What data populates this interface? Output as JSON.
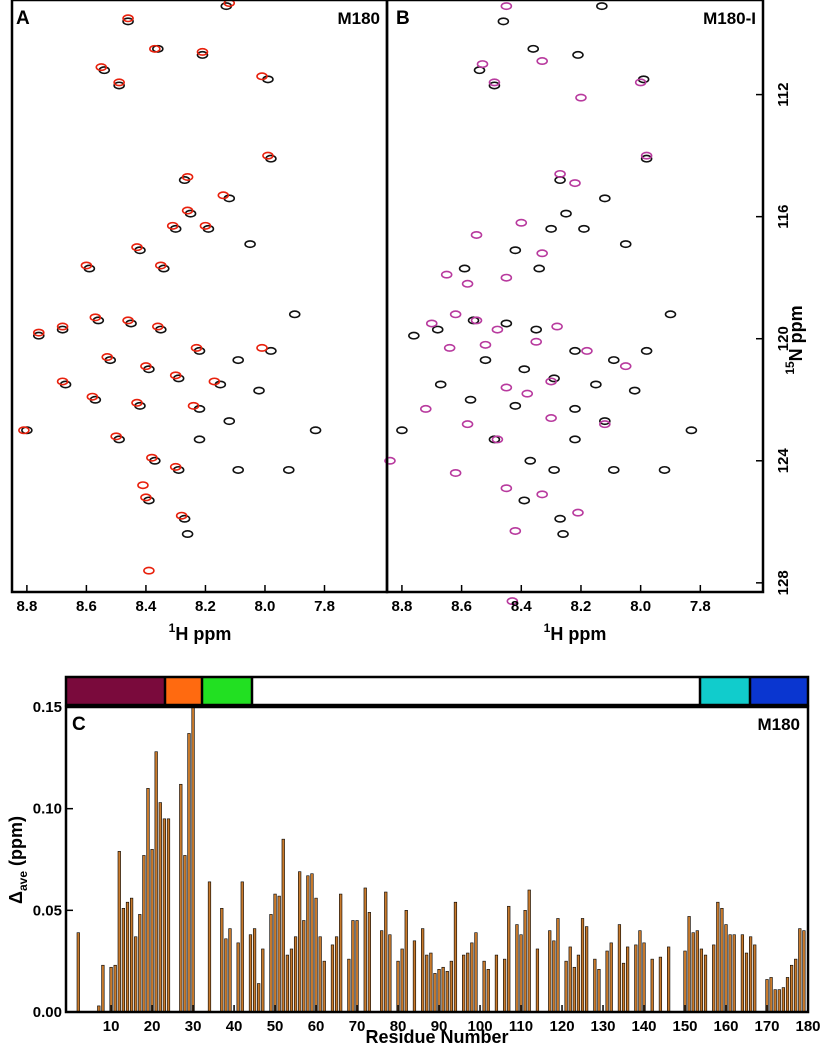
{
  "chart_data": [
    {
      "type": "scatter",
      "panel_label": "A",
      "title": "M180",
      "xlabel": {
        "sup": "1",
        "text": "H ppm"
      },
      "xlim": [
        8.85,
        7.59
      ],
      "xticks": [
        8.8,
        8.6,
        8.4,
        8.2,
        {
          "value": 8,
          "label": "8.0"
        },
        7.8
      ],
      "ylim": [
        128.3,
        108.9
      ],
      "series": [
        {
          "color": "#111111",
          "x": [
            8.46,
            8.36,
            8.21,
            8.13,
            7.99,
            7.98,
            8.54,
            8.49,
            8.27,
            8.12,
            8.25,
            8.3,
            8.19,
            8.42,
            8.34,
            8.05,
            8.59,
            7.9,
            8.68,
            8.76,
            8.56,
            8.45,
            8.35,
            8.22,
            8.09,
            7.98,
            8.52,
            8.39,
            8.29,
            8.15,
            8.02,
            8.67,
            8.57,
            8.42,
            8.22,
            8.12,
            7.83,
            8.8,
            8.49,
            8.22,
            8.37,
            8.29,
            8.09,
            8.39,
            7.92,
            8.27,
            8.26
          ],
          "values": [
            109.6,
            110.5,
            110.7,
            109.1,
            111.5,
            114.1,
            111.2,
            111.7,
            114.8,
            115.4,
            115.9,
            116.4,
            116.4,
            117.1,
            117.7,
            116.9,
            117.7,
            119.2,
            119.7,
            119.9,
            119.4,
            119.5,
            119.7,
            120.4,
            120.7,
            120.4,
            120.7,
            121.0,
            121.3,
            121.5,
            121.7,
            121.5,
            122.0,
            122.2,
            122.3,
            122.7,
            123.0,
            123.0,
            123.3,
            123.3,
            124.0,
            124.3,
            124.3,
            125.3,
            124.3,
            125.9,
            126.4
          ]
        },
        {
          "color": "#e8200c",
          "x": [
            8.46,
            8.37,
            8.49,
            8.55,
            8.26,
            8.14,
            8.26,
            8.31,
            8.2,
            8.43,
            8.35,
            8.6,
            8.68,
            8.76,
            8.57,
            8.46,
            8.36,
            8.23,
            8.01,
            8.53,
            8.4,
            8.3,
            8.17,
            8.68,
            8.58,
            8.43,
            8.24,
            8.5,
            8.38,
            8.3,
            8.4,
            8.28,
            8.39,
            8.81,
            8.41,
            8.01,
            7.99,
            8.12,
            8.21
          ],
          "values": [
            109.5,
            110.5,
            111.6,
            111.1,
            114.7,
            115.3,
            115.8,
            116.3,
            116.3,
            117.0,
            117.6,
            117.6,
            119.6,
            119.8,
            119.3,
            119.4,
            119.6,
            120.3,
            120.3,
            120.6,
            120.9,
            121.2,
            121.4,
            121.4,
            121.9,
            122.1,
            122.2,
            123.2,
            123.9,
            124.2,
            125.2,
            125.8,
            127.6,
            123.0,
            124.8,
            111.4,
            114.0,
            109.0,
            110.6
          ]
        }
      ]
    },
    {
      "type": "scatter",
      "panel_label": "B",
      "title": "M180-I",
      "xlabel": {
        "sup": "1",
        "text": "H ppm"
      },
      "ylabel": {
        "sup": "15",
        "text": "N ppm"
      },
      "xlim": [
        8.85,
        7.59
      ],
      "xticks": [
        8.8,
        8.6,
        8.4,
        8.2,
        {
          "value": 8,
          "label": "8.0"
        },
        7.8
      ],
      "ylim": [
        128.3,
        108.9
      ],
      "yticks": [
        112,
        116,
        120,
        124,
        128
      ],
      "series": [
        {
          "color": "#111111",
          "x": [
            8.46,
            8.36,
            8.21,
            8.13,
            7.99,
            7.98,
            8.54,
            8.49,
            8.27,
            8.12,
            8.25,
            8.3,
            8.19,
            8.42,
            8.34,
            8.05,
            8.59,
            7.9,
            8.68,
            8.76,
            8.56,
            8.45,
            8.35,
            8.22,
            8.09,
            7.98,
            8.52,
            8.39,
            8.29,
            8.15,
            8.02,
            8.67,
            8.57,
            8.42,
            8.22,
            8.12,
            7.83,
            8.8,
            8.49,
            8.22,
            8.37,
            8.29,
            8.09,
            8.39,
            7.92,
            8.27,
            8.26
          ],
          "values": [
            109.6,
            110.5,
            110.7,
            109.1,
            111.5,
            114.1,
            111.2,
            111.7,
            114.8,
            115.4,
            115.9,
            116.4,
            116.4,
            117.1,
            117.7,
            116.9,
            117.7,
            119.2,
            119.7,
            119.9,
            119.4,
            119.5,
            119.7,
            120.4,
            120.7,
            120.4,
            120.7,
            121.0,
            121.3,
            121.5,
            121.7,
            121.5,
            122.0,
            122.2,
            122.3,
            122.7,
            123.0,
            123.0,
            123.3,
            123.3,
            124.0,
            124.3,
            124.3,
            125.3,
            124.3,
            125.9,
            126.4
          ]
        },
        {
          "color": "#b83a9e",
          "x": [
            8.45,
            8.53,
            8.49,
            8.33,
            8.2,
            8.27,
            8.22,
            8.4,
            8.55,
            8.33,
            8.65,
            8.58,
            8.45,
            8.7,
            8.62,
            8.55,
            8.48,
            8.52,
            8.64,
            8.28,
            8.35,
            8.18,
            8.05,
            8.45,
            8.38,
            8.3,
            8.72,
            8.58,
            8.48,
            8.3,
            8.12,
            8.84,
            8.62,
            8.45,
            8.33,
            8.42,
            8.21,
            8.43,
            8.0,
            7.98
          ],
          "values": [
            109.1,
            111.0,
            111.6,
            110.9,
            112.1,
            114.6,
            114.9,
            116.2,
            116.6,
            117.2,
            117.9,
            118.2,
            118.0,
            119.5,
            119.2,
            119.4,
            119.7,
            120.2,
            120.3,
            119.6,
            120.1,
            120.4,
            120.9,
            121.6,
            121.8,
            121.4,
            122.3,
            122.8,
            123.3,
            122.6,
            122.8,
            124.0,
            124.4,
            124.9,
            125.1,
            126.3,
            125.7,
            128.6,
            111.6,
            114.0
          ]
        }
      ]
    },
    {
      "type": "bar",
      "panel_label": "C",
      "title": "M180",
      "xlabel": "Residue Number",
      "ylabel": {
        "text": "Δ",
        "sub": "ave",
        "unit": "(ppm)"
      },
      "color": "#c87a2c",
      "xlim": [
        -1,
        180
      ],
      "xticks": [
        10,
        20,
        30,
        40,
        50,
        60,
        70,
        80,
        90,
        100,
        110,
        120,
        130,
        140,
        150,
        160,
        170,
        180
      ],
      "ylim": [
        0,
        0.15
      ],
      "yticks": [
        {
          "value": 0,
          "label": "0.00"
        },
        {
          "value": 0.05,
          "label": "0.05"
        },
        {
          "value": 0.1,
          "label": "0.10"
        },
        {
          "value": 0.15,
          "label": "0.15"
        }
      ],
      "x": [
        2,
        7,
        8,
        10,
        11,
        12,
        13,
        14,
        15,
        16,
        17,
        18,
        19,
        20,
        21,
        22,
        23,
        24,
        27,
        28,
        29,
        30,
        34,
        37,
        38,
        39,
        41,
        42,
        44,
        45,
        46,
        47,
        49,
        50,
        51,
        52,
        53,
        54,
        55,
        56,
        57,
        58,
        59,
        60,
        61,
        62,
        64,
        65,
        66,
        68,
        69,
        70,
        72,
        73,
        76,
        77,
        78,
        80,
        81,
        82,
        84,
        86,
        87,
        88,
        89,
        90,
        91,
        92,
        93,
        94,
        96,
        97,
        98,
        99,
        101,
        102,
        104,
        106,
        107,
        109,
        110,
        111,
        112,
        114,
        117,
        118,
        119,
        121,
        122,
        123,
        124,
        125,
        126,
        128,
        129,
        131,
        132,
        134,
        135,
        136,
        138,
        139,
        140,
        142,
        144,
        146,
        150,
        151,
        152,
        153,
        154,
        155,
        157,
        158,
        159,
        160,
        161,
        162,
        164,
        165,
        166,
        167,
        170,
        171,
        172,
        173,
        174,
        175,
        176,
        177,
        178,
        179
      ],
      "values": [
        0.039,
        0.003,
        0.023,
        0.022,
        0.023,
        0.079,
        0.051,
        0.054,
        0.056,
        0.037,
        0.048,
        0.077,
        0.11,
        0.08,
        0.128,
        0.103,
        0.095,
        0.095,
        0.112,
        0.077,
        0.137,
        0.15,
        0.064,
        0.051,
        0.036,
        0.041,
        0.034,
        0.064,
        0.038,
        0.041,
        0.014,
        0.031,
        0.048,
        0.058,
        0.057,
        0.085,
        0.028,
        0.031,
        0.037,
        0.069,
        0.045,
        0.067,
        0.068,
        0.056,
        0.037,
        0.025,
        0.033,
        0.037,
        0.058,
        0.026,
        0.045,
        0.045,
        0.061,
        0.049,
        0.04,
        0.059,
        0.038,
        0.025,
        0.031,
        0.05,
        0.035,
        0.041,
        0.028,
        0.029,
        0.019,
        0.021,
        0.022,
        0.02,
        0.025,
        0.054,
        0.028,
        0.029,
        0.034,
        0.039,
        0.025,
        0.021,
        0.028,
        0.026,
        0.052,
        0.043,
        0.038,
        0.05,
        0.06,
        0.031,
        0.04,
        0.035,
        0.046,
        0.025,
        0.032,
        0.022,
        0.028,
        0.046,
        0.042,
        0.026,
        0.021,
        0.03,
        0.034,
        0.043,
        0.024,
        0.032,
        0.033,
        0.04,
        0.034,
        0.026,
        0.027,
        0.032,
        0.03,
        0.047,
        0.039,
        0.04,
        0.031,
        0.028,
        0.033,
        0.054,
        0.051,
        0.043,
        0.038,
        0.038,
        0.038,
        0.029,
        0.037,
        0.033,
        0.016,
        0.017,
        0.011,
        0.011,
        0.012,
        0.017,
        0.023,
        0.026,
        0.041,
        0.04
      ]
    }
  ]
}
